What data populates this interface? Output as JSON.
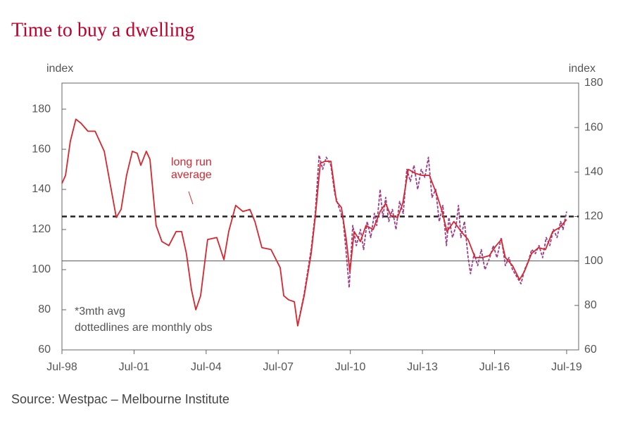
{
  "chart_data": {
    "type": "line",
    "title": "Time to buy a dwelling",
    "y_label": "index",
    "y2_label": "index",
    "source": "Source: Westpac – Melbourne Institute",
    "annotations": [
      "long run",
      "average",
      "*3mth avg",
      "dottedlines are monthly obs"
    ],
    "xlim": [
      1998.5,
      2020.0
    ],
    "xticks": [
      {
        "value": 1998.5,
        "label": "Jul-98"
      },
      {
        "value": 2001.5,
        "label": "Jul-01"
      },
      {
        "value": 2004.5,
        "label": "Jul-04"
      },
      {
        "value": 2007.5,
        "label": "Jul-07"
      },
      {
        "value": 2010.5,
        "label": "Jul-10"
      },
      {
        "value": 2013.5,
        "label": "Jul-13"
      },
      {
        "value": 2016.5,
        "label": "Jul-16"
      },
      {
        "value": 2019.5,
        "label": "Jul-19"
      }
    ],
    "ylim": [
      60,
      193
    ],
    "yticks": [
      60,
      80,
      100,
      120,
      140,
      160,
      180
    ],
    "y2lim": [
      60,
      180
    ],
    "y2ticks": [
      60,
      80,
      100,
      120,
      140,
      160,
      180
    ],
    "reference_lines": [
      {
        "value": 120,
        "axis": "y2",
        "style": "dashed",
        "color": "#222222"
      },
      {
        "value": 100,
        "axis": "y2",
        "style": "solid",
        "color": "#555555"
      }
    ],
    "series": [
      {
        "color": "#d7262e",
        "style": "solid",
        "x": [
          1998.5,
          1998.65,
          1998.85,
          1999.08,
          1999.29,
          1999.58,
          1999.88,
          2000.26,
          2000.61,
          2000.76,
          2000.96,
          2001.19,
          2001.43,
          2001.63,
          2001.78,
          2002.01,
          2002.16,
          2002.42,
          2002.66,
          2002.95,
          2003.25,
          2003.48,
          2003.68,
          2003.89,
          2004.07,
          2004.27,
          2004.56,
          2004.94,
          2005.24,
          2005.44,
          2005.73,
          2006.03,
          2006.32,
          2006.53,
          2006.82,
          2007.2,
          2007.58,
          2007.73,
          2007.93,
          2008.17,
          2008.31,
          2008.58,
          2008.87,
          2009.04,
          2009.25,
          2009.45,
          2009.69,
          2009.92,
          2010.13,
          2010.33,
          2010.48,
          2010.66,
          2010.92,
          2011.15,
          2011.45,
          2011.74,
          2011.97,
          2012.18,
          2012.47,
          2012.68,
          2012.91,
          2013.2,
          2013.5,
          2013.79,
          2014.08,
          2014.32,
          2014.52,
          2014.81,
          2015.11,
          2015.4,
          2015.69,
          2015.99,
          2016.28,
          2016.57,
          2016.78,
          2016.95,
          2017.25,
          2017.54,
          2017.74,
          2018.04,
          2018.33,
          2018.62,
          2018.92,
          2019.21,
          2019.5
        ],
        "values": [
          143,
          147,
          164,
          175,
          173,
          169,
          169,
          159,
          136,
          126,
          130,
          147,
          159,
          158,
          152,
          159,
          155,
          122,
          114,
          112,
          119,
          119,
          108,
          90,
          80,
          87,
          115,
          116,
          105,
          119,
          132,
          129,
          130,
          124,
          111,
          110,
          101,
          87,
          85,
          84,
          72,
          87,
          108,
          126,
          153,
          154,
          154,
          134,
          131,
          115,
          99,
          119,
          114,
          122,
          120,
          129,
          133,
          127,
          126,
          133,
          150,
          148,
          147,
          147,
          138,
          129,
          119,
          124,
          119,
          115,
          106,
          106,
          107,
          112,
          115,
          106,
          102,
          95,
          99,
          108,
          111,
          110,
          119,
          121,
          125
        ]
      },
      {
        "color": "#9e3e8a",
        "style": "dashed",
        "x": [
          2008.31,
          2008.58,
          2008.87,
          2009.04,
          2009.2,
          2009.35,
          2009.5,
          2009.69,
          2009.85,
          2010.0,
          2010.2,
          2010.33,
          2010.45,
          2010.6,
          2010.75,
          2010.92,
          2011.05,
          2011.2,
          2011.35,
          2011.5,
          2011.6,
          2011.74,
          2011.85,
          2011.97,
          2012.1,
          2012.25,
          2012.4,
          2012.55,
          2012.7,
          2012.85,
          2013.0,
          2013.15,
          2013.3,
          2013.45,
          2013.6,
          2013.75,
          2013.9,
          2014.05,
          2014.2,
          2014.35,
          2014.5,
          2014.6,
          2014.75,
          2014.9,
          2015.0,
          2015.1,
          2015.25,
          2015.4,
          2015.5,
          2015.65,
          2015.8,
          2015.95,
          2016.1,
          2016.3,
          2016.45,
          2016.6,
          2016.78,
          2016.95,
          2017.1,
          2017.25,
          2017.45,
          2017.6,
          2017.75,
          2017.9,
          2018.05,
          2018.2,
          2018.35,
          2018.5,
          2018.65,
          2018.8,
          2018.95,
          2019.1,
          2019.25,
          2019.35,
          2019.5
        ],
        "values": [
          72,
          88,
          110,
          128,
          157,
          150,
          156,
          152,
          138,
          132,
          125,
          108,
          91,
          122,
          112,
          120,
          110,
          124,
          116,
          128,
          122,
          140,
          126,
          136,
          124,
          130,
          120,
          134,
          128,
          150,
          144,
          152,
          140,
          150,
          146,
          156,
          136,
          140,
          124,
          132,
          112,
          126,
          116,
          122,
          132,
          116,
          124,
          106,
          98,
          108,
          102,
          110,
          100,
          106,
          112,
          106,
          116,
          102,
          106,
          100,
          96,
          93,
          100,
          104,
          110,
          108,
          112,
          106,
          116,
          112,
          120,
          116,
          124,
          120,
          129
        ]
      }
    ]
  }
}
